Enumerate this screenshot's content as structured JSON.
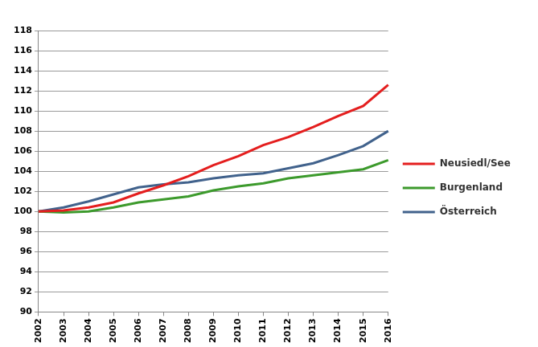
{
  "chart_data": {
    "type": "line",
    "categories": [
      "2002",
      "2003",
      "2004",
      "2005",
      "2006",
      "2007",
      "2008",
      "2009",
      "2010",
      "2011",
      "2012",
      "2013",
      "2014",
      "2015",
      "2016"
    ],
    "series": [
      {
        "name": "Neusiedl/See",
        "color": "#e41e1e",
        "values": [
          100,
          100.1,
          100.4,
          100.9,
          101.8,
          102.6,
          103.5,
          104.6,
          105.5,
          106.6,
          107.4,
          108.4,
          109.5,
          110.5,
          112.6
        ]
      },
      {
        "name": "Burgenland",
        "color": "#3c9a2c",
        "values": [
          100,
          99.9,
          100.0,
          100.4,
          100.9,
          101.2,
          101.5,
          102.1,
          102.5,
          102.8,
          103.3,
          103.6,
          103.9,
          104.2,
          105.1
        ]
      },
      {
        "name": "Österreich",
        "color": "#41628c",
        "values": [
          100,
          100.4,
          101.0,
          101.7,
          102.4,
          102.7,
          102.9,
          103.3,
          103.6,
          103.8,
          104.3,
          104.8,
          105.6,
          106.5,
          108.0
        ]
      }
    ],
    "ylim": [
      90,
      118
    ],
    "yticks": [
      90,
      92,
      94,
      96,
      98,
      100,
      102,
      104,
      106,
      108,
      110,
      112,
      114,
      116,
      118
    ],
    "grid": true,
    "legend": "right"
  }
}
